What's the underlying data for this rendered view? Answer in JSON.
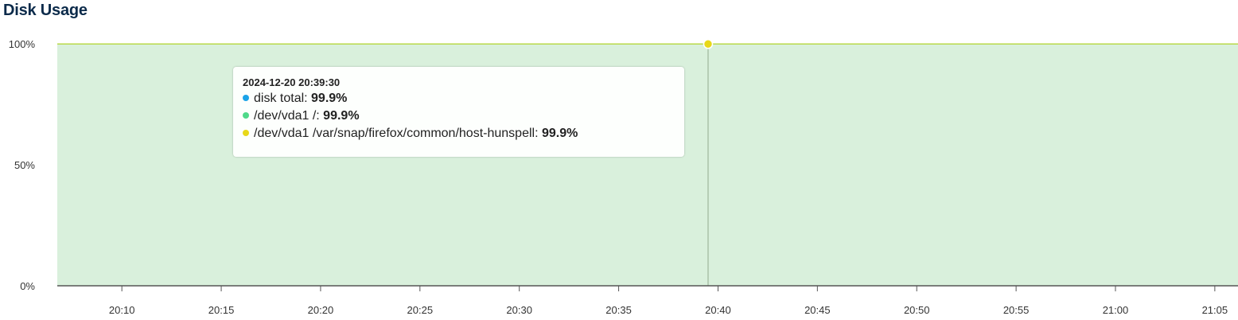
{
  "title": "Disk Usage",
  "colors": {
    "area_fill": "#d9f0dc",
    "line": "#b8d94a",
    "marker": "#e8d81a",
    "grid": "#c9dcc9",
    "axis": "#555555"
  },
  "chart_data": {
    "type": "area",
    "ylim": [
      0,
      100
    ],
    "y_ticks": [
      {
        "value": 0,
        "label": "0%"
      },
      {
        "value": 50,
        "label": "50%"
      },
      {
        "value": 100,
        "label": "100%"
      }
    ],
    "xlim": [
      "20:06:45",
      "21:06:10"
    ],
    "x_ticks": [
      "20:10",
      "20:15",
      "20:20",
      "20:25",
      "20:30",
      "20:35",
      "20:40",
      "20:45",
      "20:50",
      "20:55",
      "21:00",
      "21:05"
    ],
    "series": [
      {
        "name": "disk total",
        "color": "#1aa3e8",
        "x": [
          "20:06:45",
          "21:06:10"
        ],
        "y": [
          99.9,
          99.9
        ]
      },
      {
        "name": "/dev/vda1 /",
        "color": "#4fd98a",
        "x": [
          "20:06:45",
          "21:06:10"
        ],
        "y": [
          99.9,
          99.9
        ]
      },
      {
        "name": "/dev/vda1 /var/snap/firefox/common/host-hunspell",
        "color": "#e8d81a",
        "x": [
          "20:06:45",
          "21:06:10"
        ],
        "y": [
          99.9,
          99.9
        ]
      }
    ],
    "hover": {
      "time": "20:39:30",
      "label": "2024-12-20 20:39:30",
      "rows": [
        {
          "name": "disk total",
          "sep": ": ",
          "value": "99.9%",
          "color": "#1aa3e8"
        },
        {
          "name": "/dev/vda1 /",
          "sep": ": ",
          "value": "99.9%",
          "color": "#4fd98a"
        },
        {
          "name": "/dev/vda1 /var/snap/firefox/common/host-hunspell",
          "sep": ": ",
          "value": "99.9%",
          "color": "#e8d81a"
        }
      ]
    }
  }
}
